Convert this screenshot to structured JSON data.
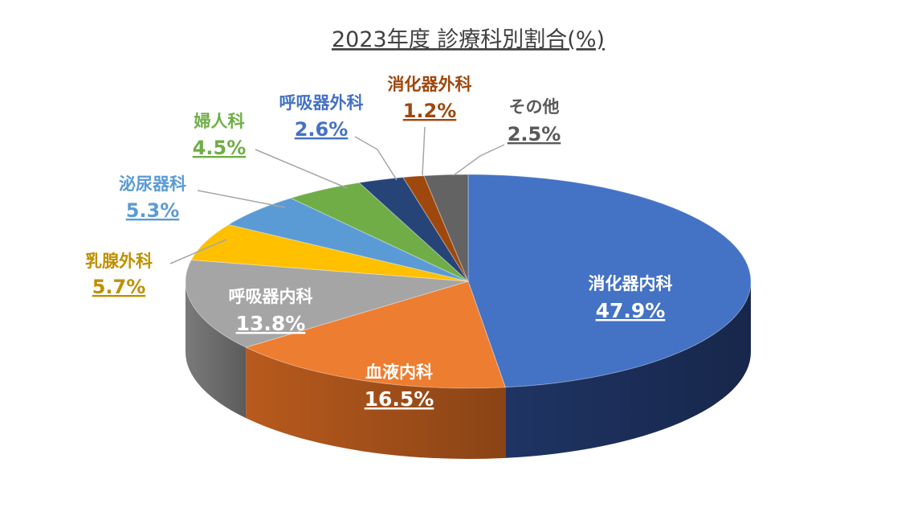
{
  "chart_data": {
    "type": "pie",
    "title": "2023年度  診療科別割合(%)",
    "slices": [
      {
        "name": "消化器内科",
        "value": 47.9,
        "label": "47.9%",
        "color": "#4472C4",
        "side_color": "#1F3464"
      },
      {
        "name": "血液内科",
        "value": 16.5,
        "label": "16.5%",
        "color": "#ED7D31",
        "side_color": "#B85A1D"
      },
      {
        "name": "呼吸器内科",
        "value": 13.8,
        "label": "13.8%",
        "color": "#A5A5A5",
        "side_color": "#7A7A7A"
      },
      {
        "name": "乳腺外科",
        "value": 5.7,
        "label": "5.7%",
        "color": "#FFC000",
        "side_color": "#B38600"
      },
      {
        "name": "泌尿器科",
        "value": 5.3,
        "label": "5.3%",
        "color": "#5B9BD5",
        "side_color": "#3A6E9E"
      },
      {
        "name": "婦人科",
        "value": 4.5,
        "label": "4.5%",
        "color": "#70AD47",
        "side_color": "#4A7A2E"
      },
      {
        "name": "呼吸器外科",
        "value": 2.6,
        "label": "2.6%",
        "color": "#264478",
        "side_color": "#172B4D"
      },
      {
        "name": "消化器外科",
        "value": 1.2,
        "label": "1.2%",
        "color": "#9E480E",
        "side_color": "#6B2F08"
      },
      {
        "name": "その他",
        "value": 2.5,
        "label": "2.5%",
        "color": "#636363",
        "side_color": "#404040"
      }
    ],
    "legend": "none",
    "label_colors": {
      "乳腺外科": "#BF9000",
      "泌尿器科": "#5B9BD5",
      "婦人科": "#70AD47",
      "呼吸器外科": "#4472C4",
      "消化器外科": "#9E480E",
      "その他": "#595959"
    }
  }
}
